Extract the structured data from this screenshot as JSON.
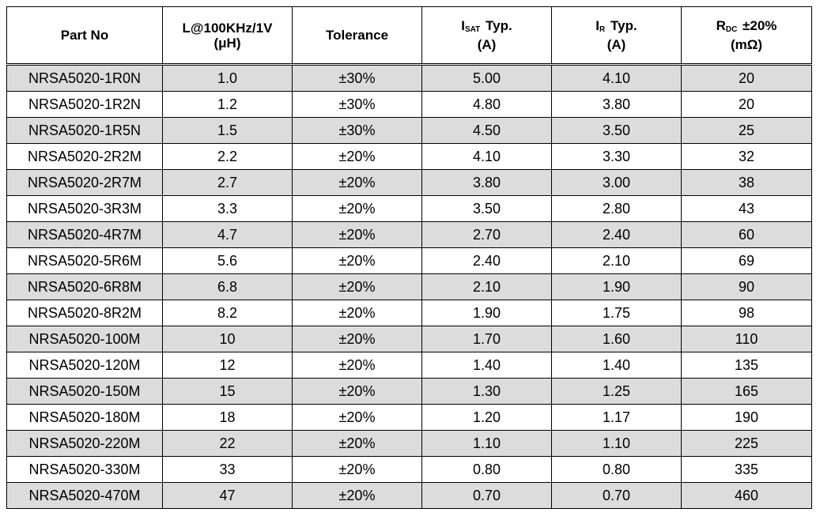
{
  "table": {
    "headers": [
      {
        "line1": "Part No",
        "line2": ""
      },
      {
        "line1": "L@100KHz/1V",
        "line2": "(μH)"
      },
      {
        "line1": "Tolerance",
        "line2": ""
      },
      {
        "main": "I",
        "sub": "SAT",
        "suffix": "Typ.",
        "line2": "(A)"
      },
      {
        "main": "I",
        "sub": "R",
        "suffix": "Typ.",
        "line2": "(A)"
      },
      {
        "main": "R",
        "sub": "DC",
        "suffix": "±20%",
        "line2": "(mΩ)"
      }
    ],
    "rows": [
      [
        "NRSA5020-1R0N",
        "1.0",
        "±30%",
        "5.00",
        "4.10",
        "20"
      ],
      [
        "NRSA5020-1R2N",
        "1.2",
        "±30%",
        "4.80",
        "3.80",
        "20"
      ],
      [
        "NRSA5020-1R5N",
        "1.5",
        "±30%",
        "4.50",
        "3.50",
        "25"
      ],
      [
        "NRSA5020-2R2M",
        "2.2",
        "±20%",
        "4.10",
        "3.30",
        "32"
      ],
      [
        "NRSA5020-2R7M",
        "2.7",
        "±20%",
        "3.80",
        "3.00",
        "38"
      ],
      [
        "NRSA5020-3R3M",
        "3.3",
        "±20%",
        "3.50",
        "2.80",
        "43"
      ],
      [
        "NRSA5020-4R7M",
        "4.7",
        "±20%",
        "2.70",
        "2.40",
        "60"
      ],
      [
        "NRSA5020-5R6M",
        "5.6",
        "±20%",
        "2.40",
        "2.10",
        "69"
      ],
      [
        "NRSA5020-6R8M",
        "6.8",
        "±20%",
        "2.10",
        "1.90",
        "90"
      ],
      [
        "NRSA5020-8R2M",
        "8.2",
        "±20%",
        "1.90",
        "1.75",
        "98"
      ],
      [
        "NRSA5020-100M",
        "10",
        "±20%",
        "1.70",
        "1.60",
        "110"
      ],
      [
        "NRSA5020-120M",
        "12",
        "±20%",
        "1.40",
        "1.40",
        "135"
      ],
      [
        "NRSA5020-150M",
        "15",
        "±20%",
        "1.30",
        "1.25",
        "165"
      ],
      [
        "NRSA5020-180M",
        "18",
        "±20%",
        "1.20",
        "1.17",
        "190"
      ],
      [
        "NRSA5020-220M",
        "22",
        "±20%",
        "1.10",
        "1.10",
        "225"
      ],
      [
        "NRSA5020-330M",
        "33",
        "±20%",
        "0.80",
        "0.80",
        "335"
      ],
      [
        "NRSA5020-470M",
        "47",
        "±20%",
        "0.70",
        "0.70",
        "460"
      ]
    ],
    "shade_color": "#dcdcdc"
  }
}
